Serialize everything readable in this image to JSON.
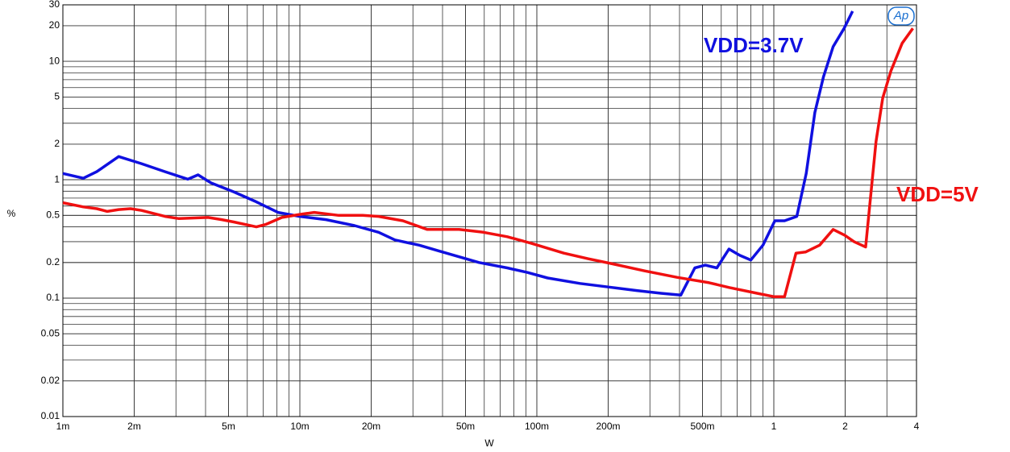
{
  "chart_data": {
    "type": "line",
    "x_label": "W",
    "y_label": "%",
    "logo": "Ap",
    "log_x": true,
    "log_y": true,
    "grid": true,
    "minor_grid": true,
    "xlim": [
      0.001,
      4
    ],
    "ylim": [
      0.01,
      30
    ],
    "xticks": [
      {
        "value": 0.001,
        "label": "1m"
      },
      {
        "value": 0.002,
        "label": "2m"
      },
      {
        "value": 0.005,
        "label": "5m"
      },
      {
        "value": 0.01,
        "label": "10m"
      },
      {
        "value": 0.02,
        "label": "20m"
      },
      {
        "value": 0.05,
        "label": "50m"
      },
      {
        "value": 0.1,
        "label": "100m"
      },
      {
        "value": 0.2,
        "label": "200m"
      },
      {
        "value": 0.5,
        "label": "500m"
      },
      1,
      2,
      4
    ],
    "yticks": [
      0.01,
      0.02,
      0.05,
      0.1,
      0.2,
      0.5,
      1,
      2,
      5,
      10,
      20,
      30
    ],
    "series": [
      {
        "name": "VDD=3.7V",
        "color": "#1010e0",
        "x": [
          0.001,
          0.00122,
          0.00139,
          0.00172,
          0.00214,
          0.0027,
          0.00337,
          0.00372,
          0.00422,
          0.00526,
          0.00645,
          0.00808,
          0.01,
          0.0129,
          0.017,
          0.0215,
          0.0252,
          0.0319,
          0.0387,
          0.057,
          0.075,
          0.091,
          0.111,
          0.152,
          0.208,
          0.264,
          0.334,
          0.405,
          0.464,
          0.514,
          0.575,
          0.647,
          0.718,
          0.8,
          0.9,
          1.01,
          1.11,
          1.25,
          1.37,
          1.49,
          1.62,
          1.78,
          1.98,
          2.15
        ],
        "values": [
          1.13,
          1.03,
          1.17,
          1.57,
          1.37,
          1.17,
          1.01,
          1.1,
          0.94,
          0.79,
          0.66,
          0.53,
          0.49,
          0.46,
          0.41,
          0.36,
          0.31,
          0.28,
          0.25,
          0.2,
          0.18,
          0.165,
          0.148,
          0.133,
          0.123,
          0.116,
          0.11,
          0.106,
          0.18,
          0.19,
          0.18,
          0.26,
          0.23,
          0.21,
          0.28,
          0.45,
          0.45,
          0.49,
          1.13,
          3.7,
          7.4,
          13.3,
          19,
          26.5
        ]
      },
      {
        "name": "VDD=5V",
        "color": "#f01010",
        "x": [
          0.001,
          0.00122,
          0.00139,
          0.00154,
          0.00172,
          0.00193,
          0.00215,
          0.0027,
          0.00309,
          0.0041,
          0.00468,
          0.00526,
          0.00655,
          0.0072,
          0.0084,
          0.01,
          0.0115,
          0.0146,
          0.0184,
          0.0215,
          0.0272,
          0.0345,
          0.047,
          0.0595,
          0.075,
          0.095,
          0.13,
          0.165,
          0.208,
          0.285,
          0.39,
          0.533,
          0.647,
          0.85,
          1.0,
          1.11,
          1.24,
          1.36,
          1.56,
          1.78,
          1.99,
          2.18,
          2.44,
          2.7,
          2.88,
          3.12,
          3.48,
          3.86
        ],
        "values": [
          0.64,
          0.59,
          0.57,
          0.54,
          0.56,
          0.57,
          0.55,
          0.49,
          0.47,
          0.48,
          0.46,
          0.44,
          0.4,
          0.42,
          0.48,
          0.51,
          0.53,
          0.5,
          0.5,
          0.49,
          0.45,
          0.38,
          0.38,
          0.36,
          0.33,
          0.29,
          0.24,
          0.215,
          0.195,
          0.17,
          0.15,
          0.135,
          0.123,
          0.11,
          0.103,
          0.103,
          0.24,
          0.245,
          0.28,
          0.38,
          0.34,
          0.3,
          0.27,
          2.1,
          4.9,
          8.3,
          14.2,
          19
        ]
      }
    ]
  }
}
